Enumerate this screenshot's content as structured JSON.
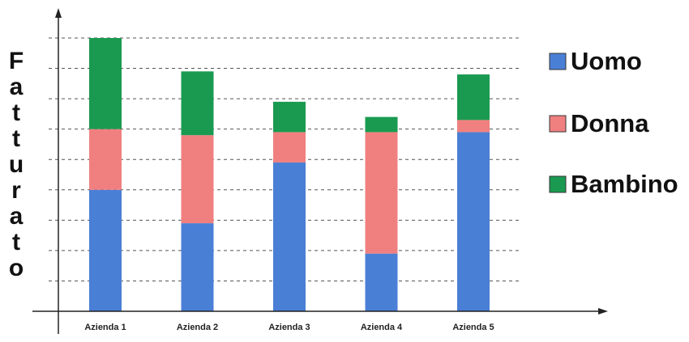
{
  "chart_data": {
    "type": "bar",
    "stacked": true,
    "title": "",
    "xlabel": "",
    "ylabel": "Fatturato",
    "categories": [
      "Azienda 1",
      "Azienda 2",
      "Azienda 3",
      "Azienda 4",
      "Azienda 5"
    ],
    "series": [
      {
        "name": "Uomo",
        "color": "#4a7fd6",
        "values": [
          4,
          2.9,
          4.9,
          1.9,
          5.9
        ]
      },
      {
        "name": "Donna",
        "color": "#f08080",
        "values": [
          2,
          2.9,
          1,
          4,
          0.4
        ]
      },
      {
        "name": "Bambino",
        "color": "#1a9a50",
        "values": [
          3,
          2.1,
          1,
          0.5,
          1.5
        ]
      }
    ],
    "ylim": [
      0,
      9
    ],
    "grid": true,
    "grid_style": "dashed",
    "show_y_tick_labels": false,
    "legend_position": "right"
  }
}
